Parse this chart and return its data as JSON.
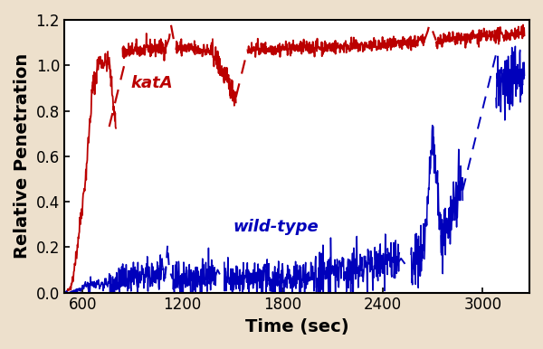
{
  "xlabel": "Time (sec)",
  "ylabel": "Relative Penetration",
  "xlim": [
    490,
    3280
  ],
  "ylim": [
    0.0,
    1.2
  ],
  "xticks": [
    600,
    1200,
    1800,
    2400,
    3000
  ],
  "yticks": [
    0.0,
    0.2,
    0.4,
    0.6,
    0.8,
    1.0,
    1.2
  ],
  "background_color": "#ede0cc",
  "plot_background": "#ffffff",
  "katA_color": "#bb0000",
  "wildtype_color": "#0000bb",
  "katA_label": "katA",
  "wildtype_label": "wild-type",
  "label_fontsize": 13,
  "axis_label_fontsize": 14,
  "tick_fontsize": 12,
  "seed": 42
}
